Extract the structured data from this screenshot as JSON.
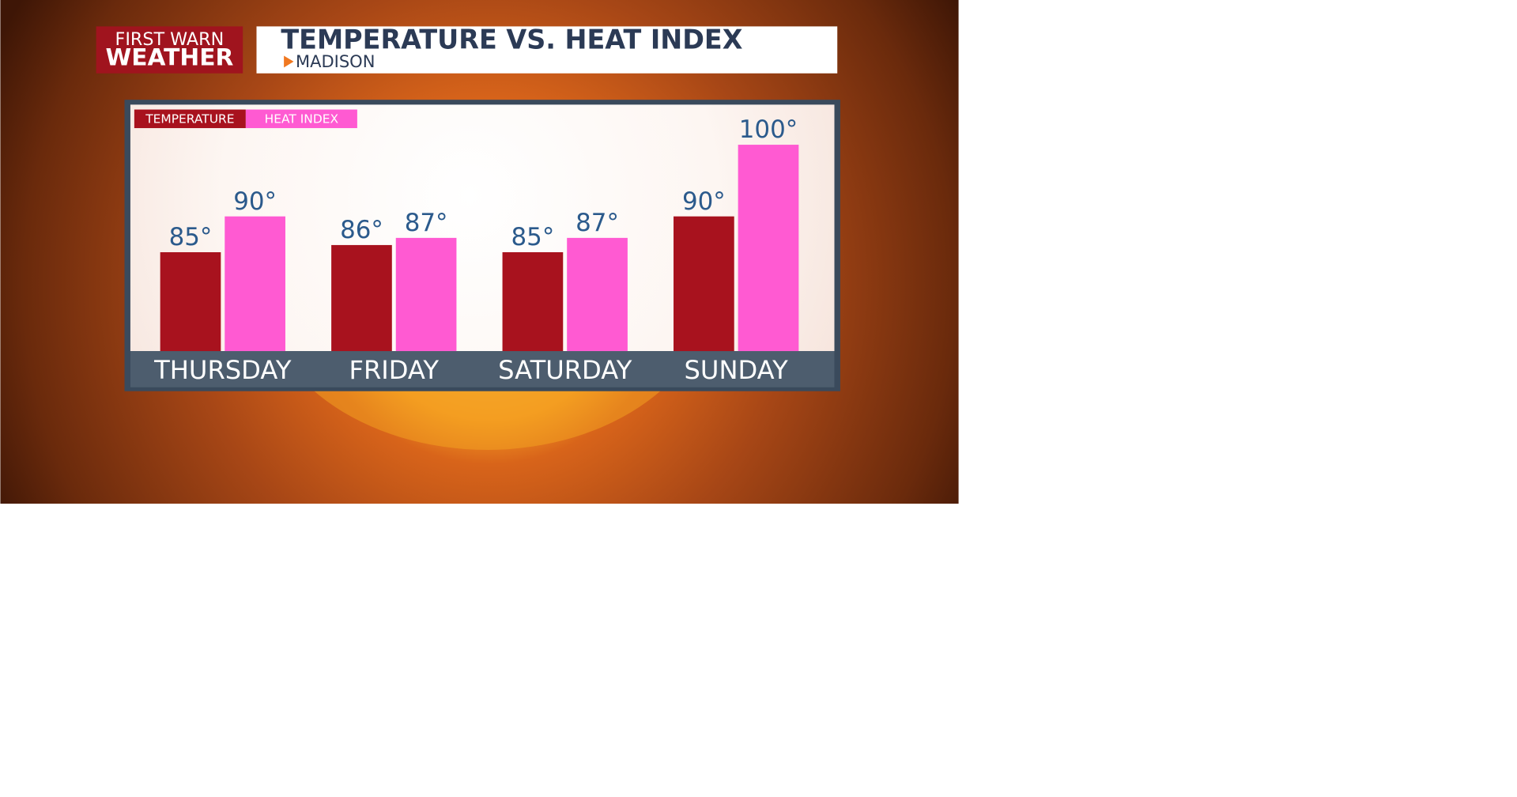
{
  "brand_lines": [
    "FIRST WARN",
    "WEATHER"
  ],
  "chart_data": {
    "type": "bar",
    "title": "TEMPERATURE VS. HEAT INDEX",
    "subtitle": "MADISON",
    "categories": [
      "THURSDAY",
      "FRIDAY",
      "SATURDAY",
      "SUNDAY"
    ],
    "series": [
      {
        "name": "TEMPERATURE",
        "color": "#a8121e",
        "values": [
          85,
          86,
          85,
          90
        ],
        "value_labels": [
          "85°",
          "86°",
          "85°",
          "90°"
        ]
      },
      {
        "name": "HEAT INDEX",
        "color": "#ff5ad2",
        "values": [
          90,
          87,
          87,
          100
        ],
        "value_labels": [
          "90°",
          "87°",
          "87°",
          "100°"
        ]
      }
    ]
  }
}
